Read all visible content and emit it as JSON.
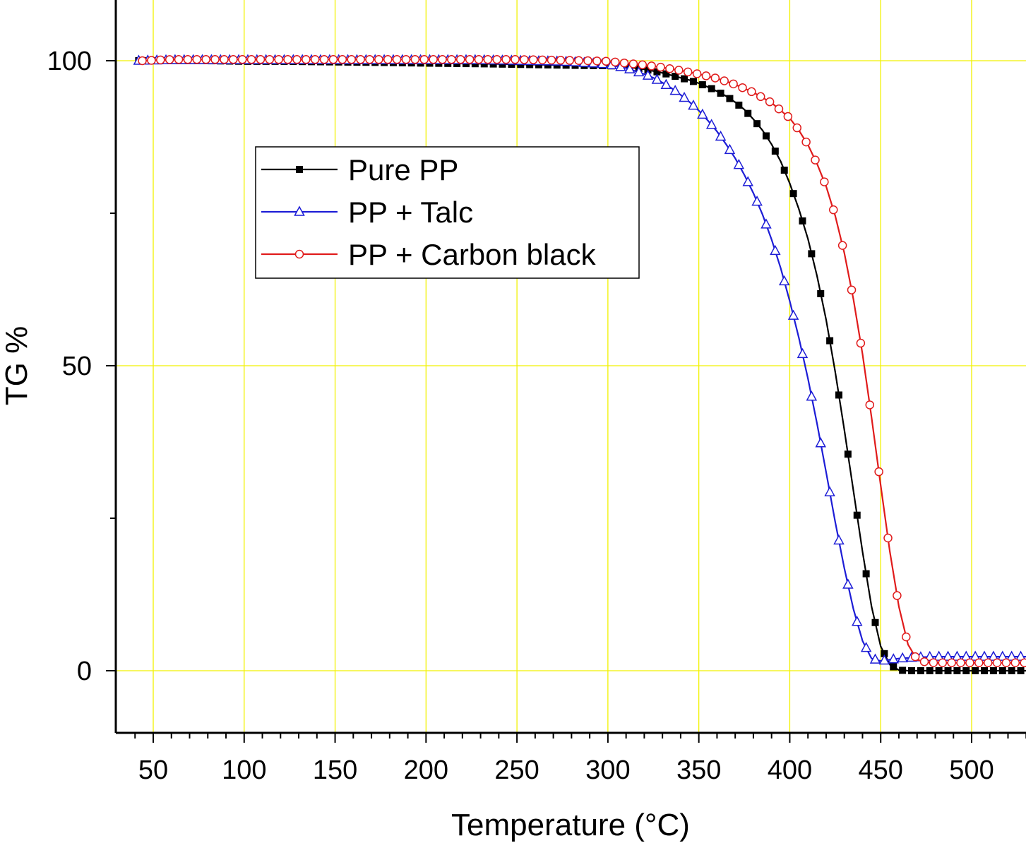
{
  "chart_data": {
    "type": "line",
    "xlabel": "Temperature (°C)",
    "ylabel": "TG %",
    "xlim": [
      40,
      530
    ],
    "ylim": [
      -10,
      108
    ],
    "x_ticks": [
      50,
      100,
      150,
      200,
      250,
      300,
      350,
      400,
      450,
      500
    ],
    "x_tick_labels": [
      "50",
      "100",
      "150",
      "200",
      "250",
      "300",
      "350",
      "400",
      "450",
      "500"
    ],
    "y_ticks": [
      0,
      50,
      100
    ],
    "y_tick_labels": [
      "0",
      "50",
      "100"
    ],
    "grid": true,
    "grid_color": "#f2f200",
    "legend_position": "upper-left",
    "series": [
      {
        "name": "Pure PP",
        "color": "#000000",
        "marker": "filled-square",
        "x": [
          42,
          60,
          80,
          100,
          120,
          150,
          180,
          200,
          230,
          250,
          270,
          290,
          300,
          305,
          310,
          315,
          320,
          325,
          330,
          335,
          340,
          345,
          350,
          355,
          360,
          365,
          370,
          375,
          380,
          385,
          390,
          395,
          400,
          405,
          410,
          415,
          420,
          425,
          430,
          435,
          440,
          445,
          450,
          455,
          460,
          465,
          470,
          480,
          490,
          500,
          510,
          520,
          530
        ],
        "y": [
          100,
          100,
          100,
          99.9,
          99.9,
          99.8,
          99.7,
          99.6,
          99.5,
          99.4,
          99.3,
          99.2,
          99.2,
          99.1,
          99.0,
          98.8,
          98.6,
          98.3,
          98.0,
          97.6,
          97.2,
          96.8,
          96.3,
          95.7,
          95.0,
          94.2,
          93.2,
          92.0,
          90.4,
          88.6,
          86.3,
          83.5,
          79.9,
          75.7,
          70.8,
          64.7,
          57.5,
          49.0,
          39.5,
          29.5,
          19.5,
          10.5,
          4.0,
          1.0,
          0.1,
          0.0,
          0.0,
          0.0,
          0.0,
          0.0,
          0.0,
          0.0,
          0.0
        ]
      },
      {
        "name": "PP + Talc",
        "color": "#1d1dd6",
        "marker": "open-triangle",
        "x": [
          42,
          60,
          80,
          100,
          120,
          150,
          180,
          200,
          230,
          250,
          270,
          280,
          290,
          300,
          305,
          310,
          315,
          320,
          325,
          330,
          335,
          340,
          345,
          350,
          355,
          360,
          365,
          370,
          375,
          380,
          385,
          390,
          395,
          400,
          405,
          410,
          415,
          420,
          425,
          430,
          435,
          440,
          445,
          450,
          455,
          460,
          470,
          480,
          500,
          530
        ],
        "y": [
          100,
          100.1,
          100.1,
          100.1,
          100.1,
          100.1,
          100.1,
          100.1,
          100.1,
          100.0,
          99.9,
          99.8,
          99.6,
          99.4,
          99.1,
          98.8,
          98.3,
          97.8,
          97.2,
          96.4,
          95.5,
          94.4,
          93.2,
          91.8,
          90.2,
          88.4,
          86.3,
          84.0,
          81.3,
          78.3,
          74.8,
          70.7,
          66.0,
          60.6,
          54.6,
          47.9,
          40.5,
          32.5,
          24.4,
          16.8,
          10.1,
          4.9,
          2.0,
          1.6,
          1.8,
          2.0,
          2.2,
          2.3,
          2.3,
          2.3
        ]
      },
      {
        "name": "PP + Carbon black",
        "color": "#e01b1b",
        "marker": "open-circle",
        "x": [
          44,
          60,
          80,
          100,
          120,
          150,
          180,
          200,
          230,
          250,
          270,
          290,
          300,
          310,
          320,
          330,
          340,
          350,
          360,
          370,
          380,
          390,
          400,
          405,
          410,
          415,
          420,
          425,
          430,
          435,
          440,
          445,
          450,
          455,
          460,
          465,
          470,
          475,
          480,
          490,
          500,
          510,
          520,
          530
        ],
        "y": [
          100,
          100.2,
          100.2,
          100.2,
          100.2,
          100.2,
          100.2,
          100.2,
          100.2,
          100.2,
          100.1,
          100.0,
          99.9,
          99.6,
          99.3,
          98.9,
          98.4,
          97.8,
          97.1,
          96.1,
          94.8,
          93.1,
          90.6,
          88.6,
          86.2,
          83.1,
          79.4,
          74.6,
          68.5,
          60.9,
          51.9,
          41.5,
          30.4,
          19.6,
          10.5,
          4.3,
          1.8,
          1.4,
          1.3,
          1.3,
          1.3,
          1.3,
          1.3,
          1.3
        ]
      }
    ]
  }
}
